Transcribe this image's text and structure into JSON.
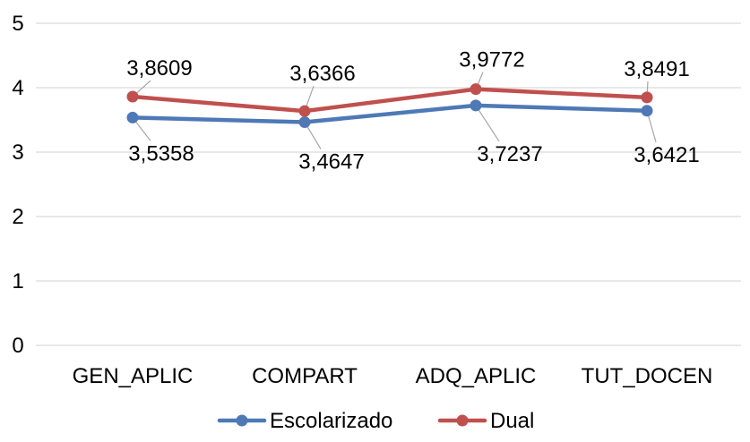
{
  "chart_data": {
    "type": "line",
    "categories": [
      "GEN_APLIC",
      "COMPART",
      "ADQ_APLIC",
      "TUT_DOCEN"
    ],
    "series": [
      {
        "name": "Escolarizado",
        "values": [
          3.5358,
          3.4647,
          3.7237,
          3.6421
        ],
        "labels": [
          "3,5358",
          "3,4647",
          "3,7237",
          "3,6421"
        ],
        "color": "#4e79b6"
      },
      {
        "name": "Dual",
        "values": [
          3.8609,
          3.6366,
          3.9772,
          3.8491
        ],
        "labels": [
          "3,8609",
          "3,6366",
          "3,9772",
          "3,8491"
        ],
        "color": "#c0504d"
      }
    ],
    "ylim": [
      0,
      5
    ],
    "yticks": [
      "0",
      "1",
      "2",
      "3",
      "4",
      "5"
    ],
    "grid": true,
    "legend": "bottom"
  }
}
